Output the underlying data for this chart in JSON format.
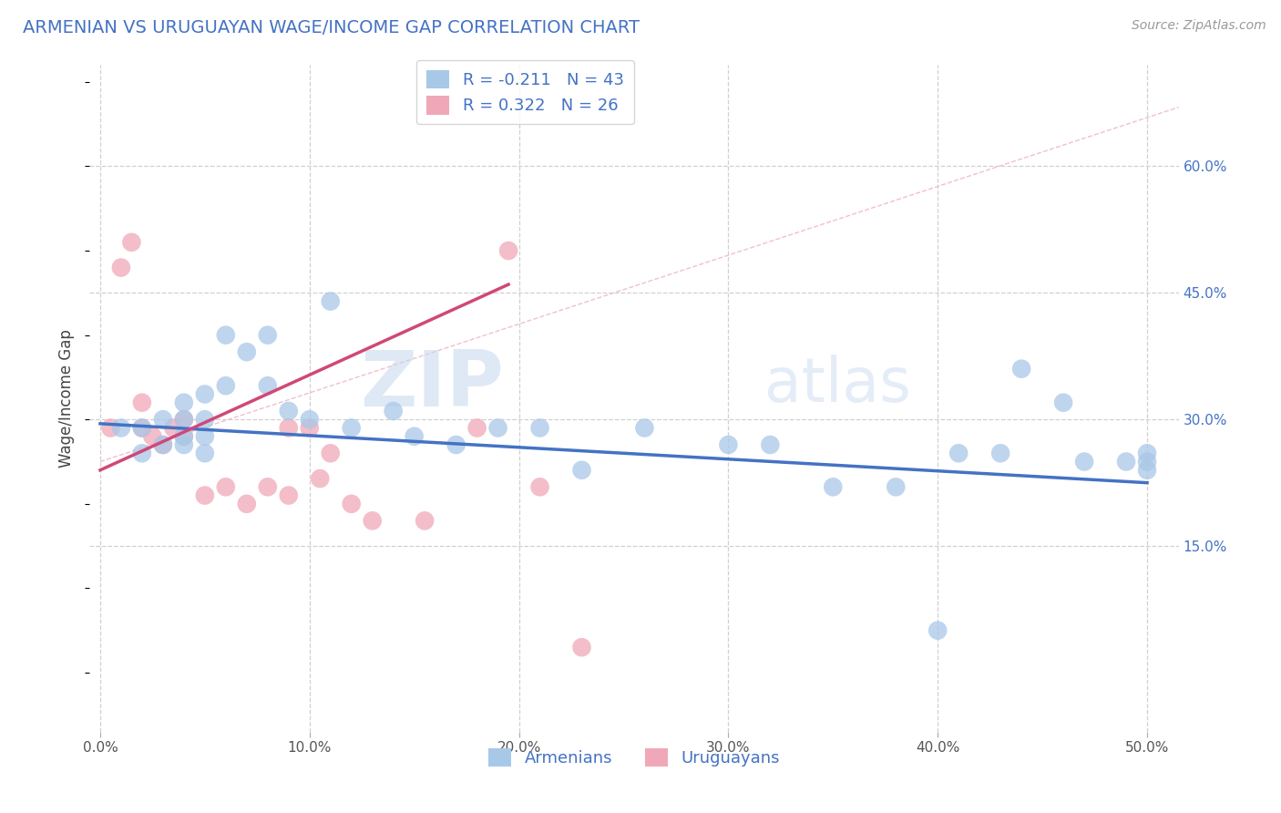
{
  "title": "ARMENIAN VS URUGUAYAN WAGE/INCOME GAP CORRELATION CHART",
  "source": "Source: ZipAtlas.com",
  "ylabel": "Wage/Income Gap",
  "xlim": [
    -0.005,
    0.515
  ],
  "ylim": [
    -0.07,
    0.72
  ],
  "xticks": [
    0.0,
    0.1,
    0.2,
    0.3,
    0.4,
    0.5
  ],
  "xticklabels": [
    "0.0%",
    "10.0%",
    "20.0%",
    "30.0%",
    "40.0%",
    "50.0%"
  ],
  "yticks": [
    0.15,
    0.3,
    0.45,
    0.6
  ],
  "yticklabels": [
    "15.0%",
    "30.0%",
    "45.0%",
    "60.0%"
  ],
  "grid_color": "#d0d0d0",
  "background_color": "#ffffff",
  "watermark_zip": "ZIP",
  "watermark_atlas": "atlas",
  "armenian_color": "#a8c8e8",
  "uruguayan_color": "#f0a8b8",
  "armenian_line_color": "#4472c4",
  "uruguayan_line_color": "#d04878",
  "diagonal_line_color": "#f0c0d0",
  "R_armenian": -0.211,
  "N_armenian": 43,
  "R_uruguayan": 0.322,
  "N_uruguayan": 26,
  "armenian_x": [
    0.01,
    0.02,
    0.02,
    0.03,
    0.03,
    0.04,
    0.04,
    0.04,
    0.04,
    0.05,
    0.05,
    0.05,
    0.05,
    0.06,
    0.06,
    0.07,
    0.08,
    0.08,
    0.09,
    0.1,
    0.11,
    0.12,
    0.14,
    0.15,
    0.17,
    0.19,
    0.21,
    0.23,
    0.26,
    0.3,
    0.32,
    0.35,
    0.38,
    0.4,
    0.41,
    0.43,
    0.44,
    0.46,
    0.47,
    0.49,
    0.5,
    0.5,
    0.5
  ],
  "armenian_y": [
    0.29,
    0.26,
    0.29,
    0.27,
    0.3,
    0.27,
    0.28,
    0.3,
    0.32,
    0.26,
    0.28,
    0.3,
    0.33,
    0.34,
    0.4,
    0.38,
    0.34,
    0.4,
    0.31,
    0.3,
    0.44,
    0.29,
    0.31,
    0.28,
    0.27,
    0.29,
    0.29,
    0.24,
    0.29,
    0.27,
    0.27,
    0.22,
    0.22,
    0.05,
    0.26,
    0.26,
    0.36,
    0.32,
    0.25,
    0.25,
    0.25,
    0.26,
    0.24
  ],
  "uruguayan_x": [
    0.005,
    0.01,
    0.015,
    0.02,
    0.02,
    0.025,
    0.03,
    0.035,
    0.04,
    0.04,
    0.05,
    0.06,
    0.07,
    0.08,
    0.09,
    0.09,
    0.1,
    0.105,
    0.11,
    0.12,
    0.13,
    0.155,
    0.18,
    0.195,
    0.21,
    0.23
  ],
  "uruguayan_y": [
    0.29,
    0.48,
    0.51,
    0.29,
    0.32,
    0.28,
    0.27,
    0.29,
    0.28,
    0.3,
    0.21,
    0.22,
    0.2,
    0.22,
    0.21,
    0.29,
    0.29,
    0.23,
    0.26,
    0.2,
    0.18,
    0.18,
    0.29,
    0.5,
    0.22,
    0.03
  ]
}
